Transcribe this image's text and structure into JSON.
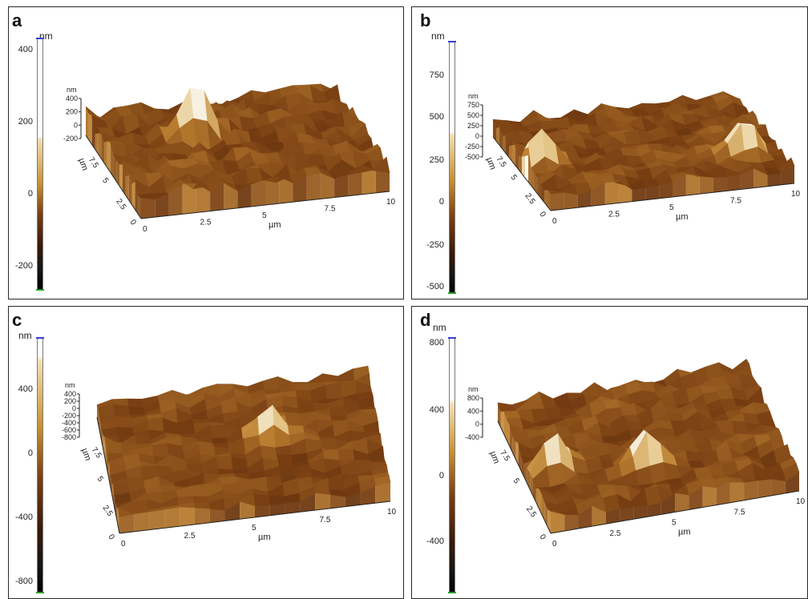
{
  "panels": [
    {
      "label": "a",
      "unit": "nm",
      "scale_ticks": [
        "400",
        "200",
        "0",
        "-200"
      ],
      "z_unit": "nm",
      "z_ticks": [
        "400",
        "200",
        "0",
        "-200"
      ],
      "x_ticks": [
        "0",
        "2.5",
        "5",
        "7.5",
        "10"
      ],
      "y_ticks": [
        "0",
        "2.5",
        "5",
        "7.5"
      ],
      "x_label": "µm",
      "y_label": "µm"
    },
    {
      "label": "b",
      "unit": "nm",
      "scale_ticks": [
        "750",
        "500",
        "250",
        "0",
        "-250",
        "-500"
      ],
      "z_unit": "nm",
      "z_ticks": [
        "750",
        "500",
        "250",
        "0",
        "-250",
        "-500"
      ],
      "x_ticks": [
        "0",
        "2.5",
        "5",
        "7.5",
        "10"
      ],
      "y_ticks": [
        "0",
        "2.5",
        "5",
        "7.5"
      ],
      "x_label": "µm",
      "y_label": "µm"
    },
    {
      "label": "c",
      "unit": "nm",
      "scale_ticks": [
        "400",
        "0",
        "-400",
        "-800"
      ],
      "z_unit": "nm",
      "z_ticks": [
        "400",
        "200",
        "0",
        "-200",
        "-400",
        "-600",
        "-800"
      ],
      "x_ticks": [
        "0",
        "2.5",
        "5",
        "7.5",
        "10"
      ],
      "y_ticks": [
        "0",
        "2.5",
        "5",
        "7.5"
      ],
      "x_label": "µm",
      "y_label": "µm"
    },
    {
      "label": "d",
      "unit": "nm",
      "scale_ticks": [
        "800",
        "400",
        "0",
        "-400"
      ],
      "z_unit": "nm",
      "z_ticks": [
        "800",
        "400",
        "0",
        "-400"
      ],
      "x_ticks": [
        "0",
        "2.5",
        "5",
        "7.5",
        "10"
      ],
      "y_ticks": [
        "0",
        "2.5",
        "5",
        "7.5"
      ],
      "x_label": "µm",
      "y_label": "µm"
    }
  ]
}
